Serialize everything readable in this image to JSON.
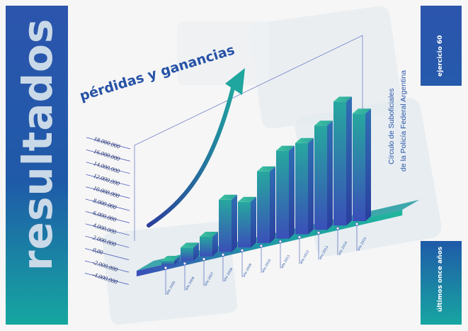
{
  "cover": {
    "side_title": "resultados",
    "top_right_label": "ejercicio 60",
    "bottom_right_label": "últimos once años",
    "organization_line1": "Círculo de Suboficiales",
    "organization_line2": "de la  Policía Federal Argentina"
  },
  "colors": {
    "band_blue": "#2c55ad",
    "band_teal": "#15a7a0",
    "bar_teal": "#1fb59a",
    "bar_blue": "#3a4fb8",
    "title_blue": "#2552a6"
  },
  "chart_data": {
    "type": "bar",
    "title": "pérdidas y ganancias",
    "y_ticks": [
      "18.000.000",
      "16.000.000",
      "14.000.000",
      "12.000.000",
      "10.000.000",
      "8.000.000",
      "6.000.000",
      "4.000.000",
      "2.000.000",
      "0,00",
      "-2.000.000",
      "-4.000.000"
    ],
    "ylim": [
      -4000000,
      18000000
    ],
    "categories": [
      "año 2005",
      "año 2006",
      "año 2007",
      "año 2008",
      "año 2009",
      "año 2010",
      "año 2011",
      "año 2012",
      "año 2013",
      "año 2014",
      "año 2015"
    ],
    "values": [
      -2000000,
      2000000,
      3000000,
      8000000,
      7000000,
      11000000,
      13500000,
      14000000,
      16000000,
      19000000,
      16500000
    ],
    "trend_arrow": true
  }
}
